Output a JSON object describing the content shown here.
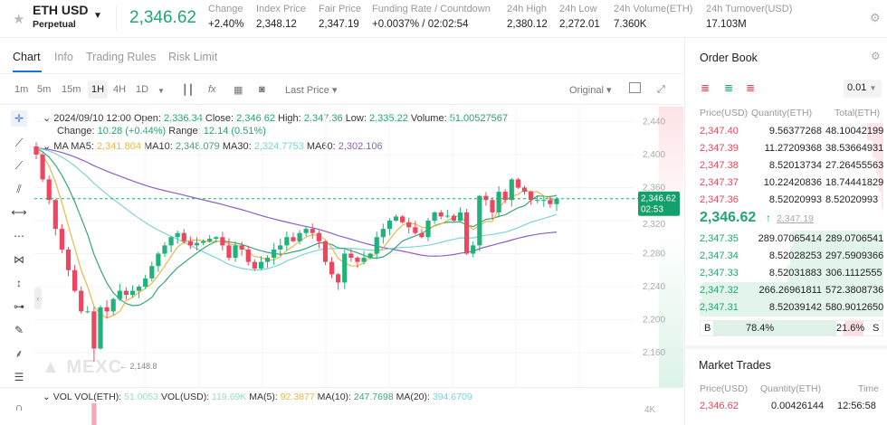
{
  "header": {
    "symbol": "ETH USD",
    "type": "Perpetual",
    "last_price": "2,346.62",
    "stats": [
      {
        "label": "Change",
        "value": "+2.40%"
      },
      {
        "label": "Index Price",
        "value": "2,348.12"
      },
      {
        "label": "Fair Price",
        "value": "2,347.19"
      },
      {
        "label": "Funding Rate / Countdown",
        "value": "+0.0037% / 02:02:54"
      },
      {
        "label": "24h High",
        "value": "2,380.12"
      },
      {
        "label": "24h Low",
        "value": "2,272.01"
      },
      {
        "label": "24h Volume(ETH)",
        "value": "7.360K"
      },
      {
        "label": "24h Turnover(USD)",
        "value": "17.103M"
      }
    ]
  },
  "tabs": [
    "Chart",
    "Info",
    "Trading Rules",
    "Risk Limit"
  ],
  "toolbar": {
    "intervals": [
      "1m",
      "5m",
      "15m",
      "1H",
      "4H",
      "1D"
    ],
    "active": "1H",
    "price_type": "Last Price",
    "view": "Original"
  },
  "ohlc": {
    "date": "2024/09/10 12:00",
    "open_l": "Open:",
    "open": "2,336.34",
    "close_l": "Close:",
    "close": "2,346.62",
    "high_l": "High:",
    "high": "2,347.36",
    "low_l": "Low:",
    "low": "2,335.22",
    "vol_l": "Volume:",
    "volume": "51.00527567",
    "change_l": "Change:",
    "change": "10.28 (+0.44%)",
    "range_l": "Range:",
    "range": "12.14 (0.51%)"
  },
  "ma": {
    "label": "MA",
    "ma5_l": "MA5:",
    "ma5": "2,341.804",
    "ma10_l": "MA10:",
    "ma10": "2,348.079",
    "ma30_l": "MA30:",
    "ma30": "2,324.7753",
    "ma60_l": "MA60:",
    "ma60": "2,302.106"
  },
  "vol": {
    "label": "VOL",
    "eth_l": "VOL(ETH):",
    "eth": "51.0053",
    "usd_l": "VOL(USD):",
    "usd": "119.69K",
    "ma5_l": "MA(5):",
    "ma5": "92.3877",
    "ma10_l": "MA(10):",
    "ma10": "247.7698",
    "ma20_l": "MA(20):",
    "ma20": "394.6709",
    "axis": "4K"
  },
  "chart_data": {
    "type": "candlestick",
    "y_ticks": [
      "2,440",
      "2,400",
      "2,360",
      "2,320",
      "2,280",
      "2,240",
      "2,200",
      "2,160"
    ],
    "ylim": [
      2135,
      2450
    ],
    "current_price": "2,346.62",
    "countdown": "02:53",
    "low_marker": "2,148.8",
    "closes": [
      2400,
      2370,
      2345,
      2310,
      2285,
      2260,
      2235,
      2210,
      2210,
      2165,
      2215,
      2210,
      2225,
      2235,
      2230,
      2235,
      2240,
      2250,
      2265,
      2280,
      2290,
      2300,
      2305,
      2295,
      2290,
      2293,
      2295,
      2298,
      2300,
      2290,
      2275,
      2290,
      2285,
      2270,
      2262,
      2270,
      2275,
      2285,
      2290,
      2300,
      2295,
      2305,
      2310,
      2305,
      2295,
      2270,
      2255,
      2245,
      2280,
      2275,
      2270,
      2275,
      2280,
      2300,
      2310,
      2320,
      2325,
      2318,
      2312,
      2305,
      2300,
      2320,
      2330,
      2325,
      2326,
      2320,
      2330,
      2280,
      2290,
      2350,
      2345,
      2330,
      2355,
      2345,
      2370,
      2360,
      2355,
      2345,
      2345,
      2345,
      2340,
      2346.62
    ]
  },
  "colors": {
    "up": "#20b27a",
    "down": "#f0455f",
    "ma5": "#e8b84a",
    "ma10": "#3aa57a",
    "ma30": "#7fd3d8",
    "ma60": "#8d5fc4"
  },
  "watermark": "MEXC",
  "orderbook": {
    "title": "Order Book",
    "precision": "0.01",
    "cols": [
      "Price(USD)",
      "Quantity(ETH)",
      "Total(ETH)"
    ],
    "asks": [
      [
        "2,347.40",
        "9.56377268",
        "48.10042199"
      ],
      [
        "2,347.39",
        "11.27209368",
        "38.53664931"
      ],
      [
        "2,347.38",
        "8.52013734",
        "27.26455563"
      ],
      [
        "2,347.37",
        "10.22420836",
        "18.74441829"
      ],
      [
        "2,347.36",
        "8.52020993",
        "8.52020993"
      ]
    ],
    "mid": "2,346.62",
    "mid_arrow": "↑",
    "fair": "2,347.19",
    "bids": [
      [
        "2,347.35",
        "289.07065414",
        "289.0706541"
      ],
      [
        "2,347.34",
        "8.52028253",
        "297.5909366"
      ],
      [
        "2,347.33",
        "8.52031883",
        "306.1112555"
      ],
      [
        "2,347.32",
        "266.26961811",
        "572.3808736"
      ],
      [
        "2,347.31",
        "8.52039142",
        "580.9012650"
      ]
    ],
    "buy_label": "B",
    "buy_pct": "78.4%",
    "sell_pct": "21.6%",
    "sell_label": "S"
  },
  "trades": {
    "title": "Market Trades",
    "cols": [
      "Price(USD)",
      "Quantity(ETH)",
      "Time"
    ],
    "rows": [
      [
        "2,346.62",
        "0.00426144",
        "12:56:58"
      ]
    ]
  }
}
